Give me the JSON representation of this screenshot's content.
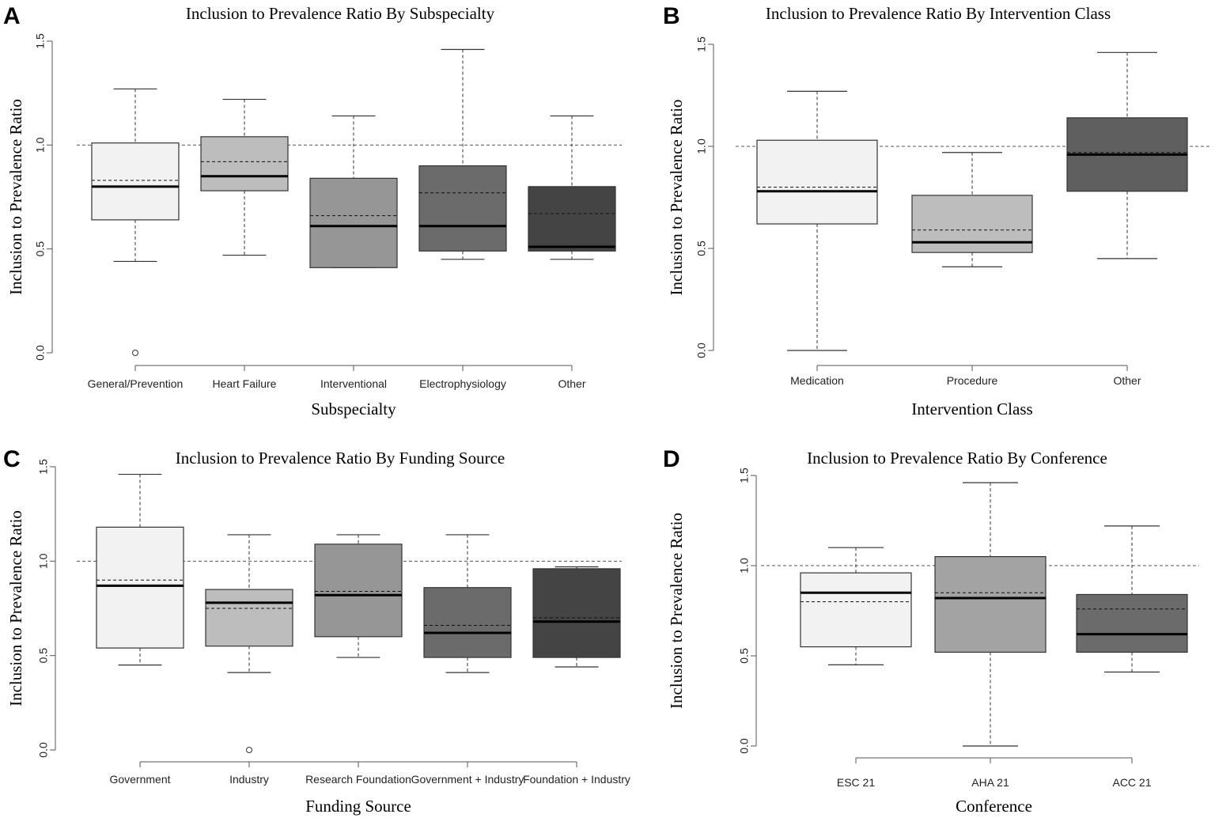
{
  "chart_data": [
    {
      "type": "box",
      "panel": "A",
      "title": "Inclusion to Prevalence Ratio By Subspecialty",
      "xlabel": "Subspecialty",
      "ylabel": "Inclusion to Prevalence Ratio",
      "ylim": [
        0,
        1.5
      ],
      "yticks": [
        "0.0",
        "0.5",
        "1.0",
        "1.5"
      ],
      "reference_line": 1.0,
      "categories": [
        "General/Prevention",
        "Heart Failure",
        "Interventional",
        "Electrophysiology",
        "Other"
      ],
      "colors": [
        "#f2f2f2",
        "#bdbdbd",
        "#969696",
        "#6b6b6b",
        "#444444"
      ],
      "boxes": [
        {
          "min": 0.44,
          "q1": 0.64,
          "median": 0.8,
          "mean": 0.83,
          "q3": 1.01,
          "max": 1.27,
          "outliers": [
            0.0
          ]
        },
        {
          "min": 0.47,
          "q1": 0.78,
          "median": 0.85,
          "mean": 0.92,
          "q3": 1.04,
          "max": 1.22,
          "outliers": []
        },
        {
          "min": 0.41,
          "q1": 0.41,
          "median": 0.61,
          "mean": 0.66,
          "q3": 0.84,
          "max": 1.14,
          "outliers": []
        },
        {
          "min": 0.45,
          "q1": 0.49,
          "median": 0.61,
          "mean": 0.77,
          "q3": 0.9,
          "max": 1.46,
          "outliers": []
        },
        {
          "min": 0.45,
          "q1": 0.49,
          "median": 0.51,
          "mean": 0.67,
          "q3": 0.8,
          "max": 1.14,
          "outliers": []
        }
      ]
    },
    {
      "type": "box",
      "panel": "B",
      "title": "Inclusion to Prevalence Ratio By Intervention Class",
      "xlabel": "Intervention Class",
      "ylabel": "Inclusion to Prevalence Ratio",
      "ylim": [
        0,
        1.5
      ],
      "yticks": [
        "0.0",
        "0.5",
        "1.0",
        "1.5"
      ],
      "reference_line": 1.0,
      "categories": [
        "Medication",
        "Procedure",
        "Other"
      ],
      "colors": [
        "#f2f2f2",
        "#bdbdbd",
        "#5f5f5f"
      ],
      "boxes": [
        {
          "min": 0.0,
          "q1": 0.62,
          "median": 0.78,
          "mean": 0.8,
          "q3": 1.03,
          "max": 1.27,
          "outliers": []
        },
        {
          "min": 0.41,
          "q1": 0.48,
          "median": 0.53,
          "mean": 0.59,
          "q3": 0.76,
          "max": 0.97,
          "outliers": []
        },
        {
          "min": 0.45,
          "q1": 0.78,
          "median": 0.96,
          "mean": 0.97,
          "q3": 1.14,
          "max": 1.46,
          "outliers": []
        }
      ]
    },
    {
      "type": "box",
      "panel": "C",
      "title": "Inclusion to Prevalence Ratio By Funding Source",
      "xlabel": "Funding Source",
      "ylabel": "Inclusion to Prevalence Ratio",
      "ylim": [
        0,
        1.5
      ],
      "yticks": [
        "0.0",
        "0.5",
        "1.0",
        "1.5"
      ],
      "reference_line": 1.0,
      "categories": [
        "Government",
        "Industry",
        "Research Foundation",
        "Government + Industry",
        "Foundation + Industry"
      ],
      "colors": [
        "#f2f2f2",
        "#bdbdbd",
        "#969696",
        "#6b6b6b",
        "#444444"
      ],
      "boxes": [
        {
          "min": 0.45,
          "q1": 0.54,
          "median": 0.87,
          "mean": 0.9,
          "q3": 1.18,
          "max": 1.46,
          "outliers": []
        },
        {
          "min": 0.41,
          "q1": 0.55,
          "median": 0.78,
          "mean": 0.75,
          "q3": 0.85,
          "max": 1.14,
          "outliers": [
            0.0
          ]
        },
        {
          "min": 0.49,
          "q1": 0.6,
          "median": 0.82,
          "mean": 0.84,
          "q3": 1.09,
          "max": 1.14,
          "outliers": []
        },
        {
          "min": 0.41,
          "q1": 0.49,
          "median": 0.62,
          "mean": 0.66,
          "q3": 0.86,
          "max": 1.14,
          "outliers": []
        },
        {
          "min": 0.44,
          "q1": 0.49,
          "median": 0.68,
          "mean": 0.7,
          "q3": 0.96,
          "max": 0.97,
          "outliers": []
        }
      ]
    },
    {
      "type": "box",
      "panel": "D",
      "title": "Inclusion to Prevalence Ratio By Conference",
      "xlabel": "Conference",
      "ylabel": "Inclusion to Prevalence Ratio",
      "ylim": [
        0,
        1.5
      ],
      "yticks": [
        "0.0",
        "0.5",
        "1.0",
        "1.5"
      ],
      "reference_line": 1.0,
      "categories": [
        "ESC 21",
        "AHA 21",
        "ACC 21"
      ],
      "colors": [
        "#f2f2f2",
        "#a3a3a3",
        "#6b6b6b"
      ],
      "boxes": [
        {
          "min": 0.45,
          "q1": 0.55,
          "median": 0.85,
          "mean": 0.8,
          "q3": 0.96,
          "max": 1.1,
          "outliers": []
        },
        {
          "min": 0.0,
          "q1": 0.52,
          "median": 0.82,
          "mean": 0.85,
          "q3": 1.05,
          "max": 1.46,
          "outliers": []
        },
        {
          "min": 0.41,
          "q1": 0.52,
          "median": 0.62,
          "mean": 0.76,
          "q3": 0.84,
          "max": 1.22,
          "outliers": []
        }
      ]
    }
  ]
}
